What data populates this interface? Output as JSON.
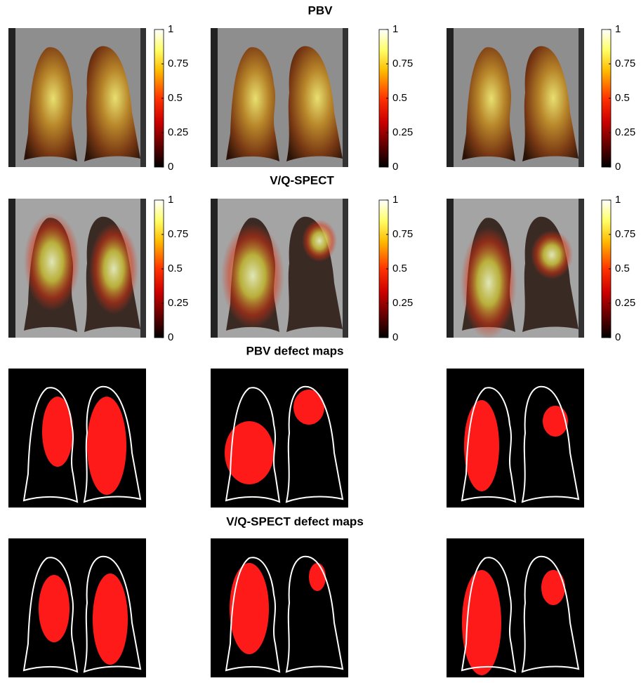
{
  "sections": [
    {
      "title": "PBV"
    },
    {
      "title": "V/Q-SPECT"
    },
    {
      "title": "PBV defect maps"
    },
    {
      "title": "V/Q-SPECT defect maps"
    }
  ],
  "colorbars": [
    {
      "ticks": [
        0,
        0.25,
        0.5,
        0.75,
        1
      ]
    },
    {
      "ticks": [
        0,
        0.25,
        0.5,
        0.75,
        1
      ]
    },
    {
      "ticks": [
        0,
        0.25,
        0.5,
        0.75,
        1
      ]
    },
    {
      "ticks": [
        0,
        0.25,
        0.5,
        0.75,
        1
      ]
    },
    {
      "ticks": [
        0,
        0.25,
        0.5,
        0.75,
        1
      ]
    },
    {
      "ticks": [
        0,
        0.25,
        0.5,
        0.75,
        1
      ]
    }
  ]
}
